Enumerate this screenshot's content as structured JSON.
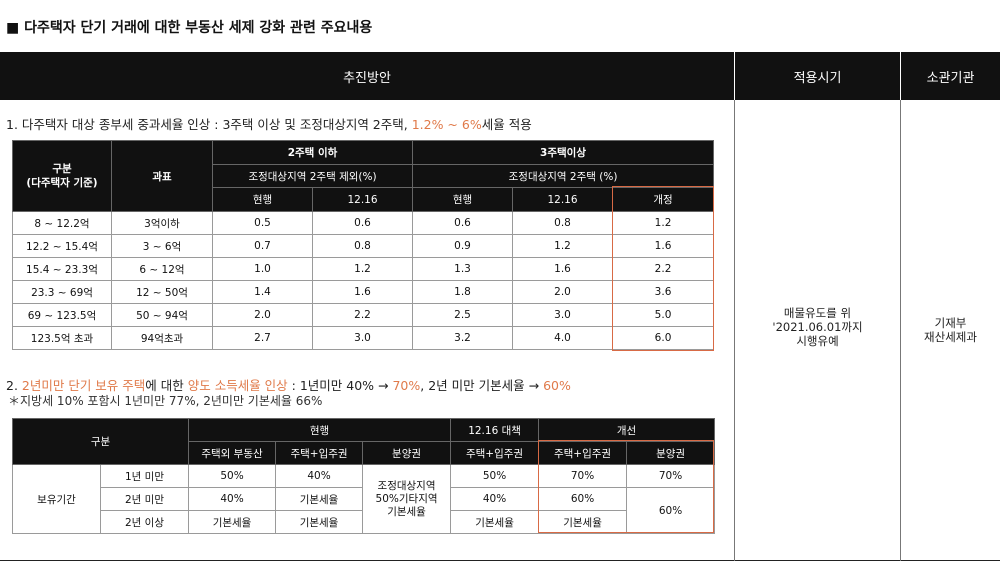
{
  "page_title": "■ 다주택자 단기 거래에 대한 부동산 세제 강화 관련 주요내용",
  "headers": {
    "plan": "추진방안",
    "timing": "적용시기",
    "agency": "소관기관"
  },
  "section1": {
    "pre": "1. 다주택자 대상 종부세 중과세율 인상 : 3주택 이상 및 조정대상지역 2주택, ",
    "accent": "1.2% ~ 6%",
    "post": "세율 적용",
    "table": {
      "col_group": "구분\n(다주택자 기준)",
      "col_base": "과표",
      "group2": "2주택 이하",
      "group3": "3주택이상",
      "sub2": "조정대상지역 2주택 제외(%)",
      "sub3": "조정대상지역 2주택 (%)",
      "h_current": "현행",
      "h_1216": "12.16",
      "h_revised": "개정",
      "rows": [
        {
          "group": "8 ~ 12.2억",
          "base": "3억이하",
          "v": [
            "0.5",
            "0.6",
            "0.6",
            "0.8",
            "1.2"
          ]
        },
        {
          "group": "12.2 ~ 15.4억",
          "base": "3 ~ 6억",
          "v": [
            "0.7",
            "0.8",
            "0.9",
            "1.2",
            "1.6"
          ]
        },
        {
          "group": "15.4 ~ 23.3억",
          "base": "6 ~ 12억",
          "v": [
            "1.0",
            "1.2",
            "1.3",
            "1.6",
            "2.2"
          ]
        },
        {
          "group": "23.3 ~ 69억",
          "base": "12 ~ 50억",
          "v": [
            "1.4",
            "1.6",
            "1.8",
            "2.0",
            "3.6"
          ]
        },
        {
          "group": "69 ~ 123.5억",
          "base": "50 ~ 94억",
          "v": [
            "2.0",
            "2.2",
            "2.5",
            "3.0",
            "5.0"
          ]
        },
        {
          "group": "123.5억 초과",
          "base": "94억초과",
          "v": [
            "2.7",
            "3.0",
            "3.2",
            "4.0",
            "6.0"
          ]
        }
      ]
    }
  },
  "section2": {
    "p1": "2. ",
    "a1": "2년미만 단기 보유 주택",
    "p2": "에 대한 ",
    "a2": "양도 소득세율 인상",
    "p3": " : 1년미만 40% → ",
    "a3": "70%",
    "p4": ", 2년 미만 기본세율 → ",
    "a4": "60%",
    "note": "＊지방세 10% 포함시 1년미만 77%, 2년미만 기본세율 66%",
    "table": {
      "col_group": "구분",
      "current": "현행",
      "plan1216": "12.16 대책",
      "improved": "개선",
      "h_nonhouse": "주택외 부동산",
      "h_house_right": "주택+입주권",
      "h_presale": "분양권",
      "hold_label": "보유기간",
      "rows": [
        {
          "period": "1년 미만",
          "nonhouse": "50%",
          "house": "40%",
          "p1216": "50%",
          "new_house": "70%",
          "new_presale": "70%"
        },
        {
          "period": "2년 미만",
          "nonhouse": "40%",
          "house": "기본세율",
          "p1216": "40%",
          "new_house": "60%"
        },
        {
          "period": "2년 이상",
          "nonhouse": "기본세율",
          "house": "기본세율",
          "p1216": "기본세율",
          "new_house": "기본세율"
        }
      ],
      "presale_current": "조정대상지역\n50%기타지역\n기본세율",
      "new_presale_merged": "60%"
    }
  },
  "timing_text": "매물유도를 위\n'2021.06.01까지\n시행유예",
  "agency_text": "기재부\n재산세제과"
}
